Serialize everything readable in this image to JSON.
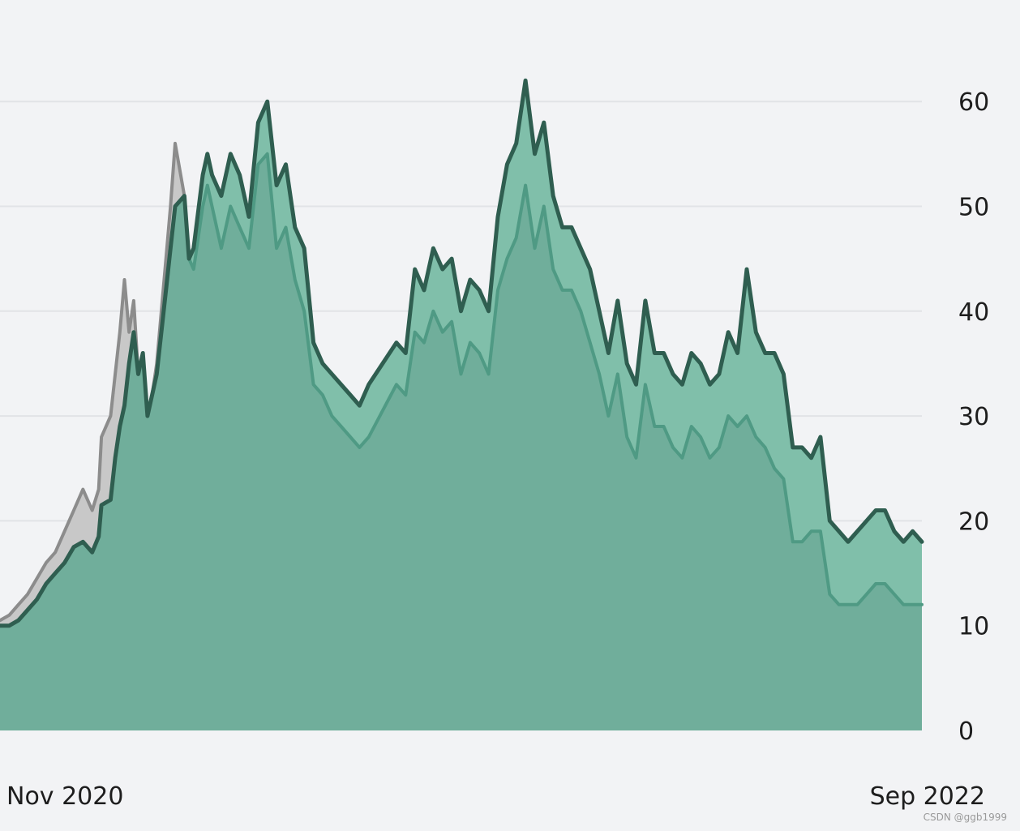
{
  "chart_data": {
    "type": "area",
    "title": "",
    "xlabel": "",
    "ylabel": "",
    "x_ticks": [
      "Nov 2020",
      "Sep 2022"
    ],
    "y_ticks": [
      0,
      10,
      20,
      30,
      40,
      50,
      60
    ],
    "ylim": [
      0,
      65
    ],
    "grid": true,
    "y_axis_position": "right",
    "colors": {
      "background": "#f2f3f5",
      "grid": "#e1e3e6",
      "series_a_line": "#2f5e50",
      "series_a_fill": "#80bfaa",
      "series_b_line": "#4f9a84",
      "series_b_fill": "#70ae9b",
      "series_c_line": "#8c8c8c",
      "series_c_fill": "#c8c8c8"
    },
    "series": [
      {
        "name": "",
        "style": "thick dark green line with light green fill",
        "x": [
          0,
          0.01,
          0.02,
          0.03,
          0.04,
          0.05,
          0.06,
          0.07,
          0.08,
          0.09,
          0.1,
          0.107,
          0.11,
          0.12,
          0.125,
          0.13,
          0.135,
          0.14,
          0.145,
          0.15,
          0.155,
          0.16,
          0.165,
          0.17,
          0.18,
          0.185,
          0.19,
          0.2,
          0.205,
          0.21,
          0.22,
          0.225,
          0.23,
          0.24,
          0.25,
          0.26,
          0.27,
          0.28,
          0.29,
          0.3,
          0.31,
          0.32,
          0.33,
          0.34,
          0.35,
          0.36,
          0.37,
          0.38,
          0.39,
          0.4,
          0.43,
          0.44,
          0.45,
          0.46,
          0.47,
          0.48,
          0.49,
          0.5,
          0.51,
          0.52,
          0.53,
          0.54,
          0.55,
          0.56,
          0.57,
          0.58,
          0.59,
          0.6,
          0.61,
          0.62,
          0.63,
          0.64,
          0.65,
          0.66,
          0.67,
          0.68,
          0.69,
          0.7,
          0.71,
          0.72,
          0.73,
          0.74,
          0.75,
          0.76,
          0.77,
          0.78,
          0.79,
          0.8,
          0.81,
          0.82,
          0.83,
          0.84,
          0.85,
          0.86,
          0.87,
          0.88,
          0.89,
          0.9,
          0.91,
          0.92,
          0.93,
          0.94,
          0.95,
          0.96,
          0.97,
          0.98,
          0.99,
          1.0
        ],
        "y": [
          10,
          10,
          10.5,
          11.5,
          12.5,
          14,
          15,
          16,
          17.5,
          18,
          17,
          18.5,
          21.5,
          22,
          26,
          29,
          31,
          35,
          38,
          34,
          36,
          30,
          32,
          34,
          42,
          46,
          50,
          51,
          45,
          46,
          53,
          55,
          53,
          51,
          55,
          53,
          49,
          58,
          60,
          52,
          54,
          48,
          46,
          37,
          35,
          34,
          33,
          32,
          31,
          33,
          37,
          36,
          44,
          42,
          46,
          44,
          45,
          40,
          43,
          42,
          40,
          49,
          54,
          56,
          62,
          55,
          58,
          51,
          48,
          48,
          46,
          44,
          40,
          36,
          41,
          35,
          33,
          41,
          36,
          36,
          34,
          33,
          36,
          35,
          33,
          34,
          38,
          36,
          44,
          38,
          36,
          36,
          34,
          27,
          27,
          26,
          28,
          20,
          19,
          18,
          19,
          20,
          21,
          21,
          19,
          18,
          19,
          18
        ]
      },
      {
        "name": "",
        "style": "medium green line with green fill",
        "x": [
          0,
          0.01,
          0.02,
          0.03,
          0.04,
          0.05,
          0.06,
          0.07,
          0.08,
          0.09,
          0.1,
          0.107,
          0.11,
          0.12,
          0.125,
          0.13,
          0.135,
          0.14,
          0.145,
          0.15,
          0.155,
          0.16,
          0.165,
          0.17,
          0.18,
          0.185,
          0.19,
          0.2,
          0.205,
          0.21,
          0.22,
          0.225,
          0.23,
          0.24,
          0.25,
          0.26,
          0.27,
          0.28,
          0.29,
          0.3,
          0.31,
          0.32,
          0.33,
          0.34,
          0.35,
          0.36,
          0.37,
          0.38,
          0.39,
          0.4,
          0.43,
          0.44,
          0.45,
          0.46,
          0.47,
          0.48,
          0.49,
          0.5,
          0.51,
          0.52,
          0.53,
          0.54,
          0.55,
          0.56,
          0.57,
          0.58,
          0.59,
          0.6,
          0.61,
          0.62,
          0.63,
          0.64,
          0.65,
          0.66,
          0.67,
          0.68,
          0.69,
          0.7,
          0.71,
          0.72,
          0.73,
          0.74,
          0.75,
          0.76,
          0.77,
          0.78,
          0.79,
          0.8,
          0.81,
          0.82,
          0.83,
          0.84,
          0.85,
          0.86,
          0.87,
          0.88,
          0.89,
          0.9,
          0.91,
          0.92,
          0.93,
          0.94,
          0.95,
          0.96,
          0.97,
          0.98,
          0.99,
          1.0
        ],
        "y": [
          10,
          10,
          10.5,
          11.5,
          12.5,
          14,
          15,
          16,
          17.5,
          18,
          17,
          18.5,
          21.5,
          22,
          26,
          29,
          31,
          35,
          38,
          34,
          36,
          30,
          32,
          34,
          42,
          46,
          50,
          51,
          45,
          44,
          50,
          52,
          50,
          46,
          50,
          48,
          46,
          54,
          55,
          46,
          48,
          43,
          40,
          33,
          32,
          30,
          29,
          28,
          27,
          28,
          33,
          32,
          38,
          37,
          40,
          38,
          39,
          34,
          37,
          36,
          34,
          42,
          45,
          47,
          52,
          46,
          50,
          44,
          42,
          42,
          40,
          37,
          34,
          30,
          34,
          28,
          26,
          33,
          29,
          29,
          27,
          26,
          29,
          28,
          26,
          27,
          30,
          29,
          30,
          28,
          27,
          25,
          24,
          18,
          18,
          19,
          19,
          13,
          12,
          12,
          12,
          13,
          14,
          14,
          13,
          12,
          12,
          12
        ]
      },
      {
        "name": "",
        "style": "gray line with light gray fill",
        "x": [
          0,
          0.01,
          0.02,
          0.03,
          0.04,
          0.05,
          0.06,
          0.07,
          0.08,
          0.09,
          0.1,
          0.107,
          0.11,
          0.12,
          0.125,
          0.13,
          0.135,
          0.14,
          0.145,
          0.15,
          0.155,
          0.16,
          0.165,
          0.17,
          0.18,
          0.185,
          0.19,
          0.2,
          0.205
        ],
        "y": [
          10.5,
          11,
          12,
          13,
          14.5,
          16,
          17,
          19,
          21,
          23,
          21,
          23,
          28,
          30,
          34,
          38,
          43,
          38,
          41,
          34,
          36,
          30,
          32,
          35,
          45,
          50,
          56,
          51,
          45
        ]
      }
    ]
  },
  "watermark": "CSDN @ggb1999"
}
